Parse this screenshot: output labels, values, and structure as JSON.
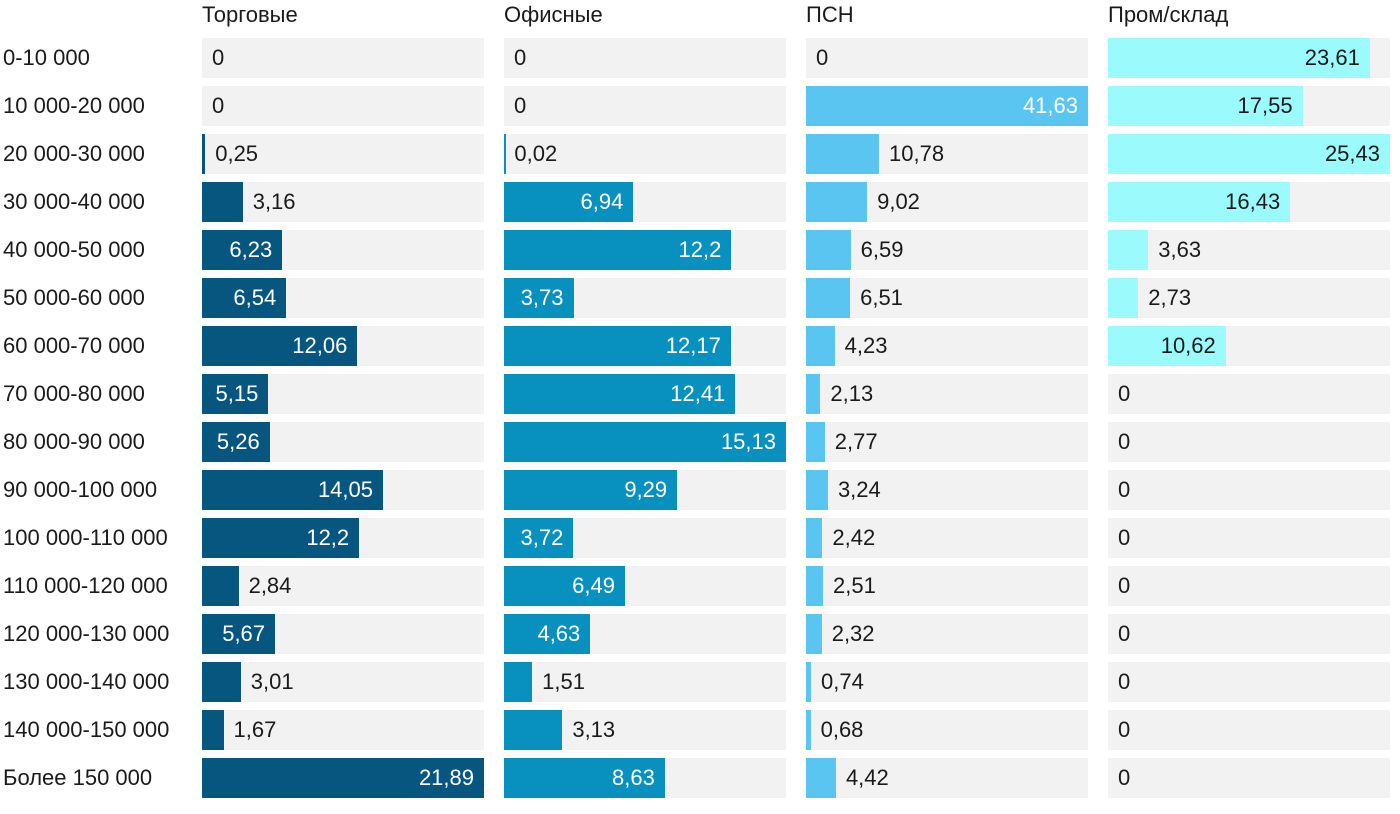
{
  "chart_data": {
    "type": "bar",
    "orientation": "horizontal",
    "layout": "small-multiples",
    "categories": [
      "0-10 000",
      "10 000-20 000",
      "20 000-30 000",
      "30 000-40 000",
      "40 000-50 000",
      "50 000-60 000",
      "60 000-70 000",
      "70 000-80 000",
      "80 000-90 000",
      "90 000-100 000",
      "100 000-110 000",
      "110 000-120 000",
      "120 000-130 000",
      "130 000-140 000",
      "140 000-150 000",
      "Более 150 000"
    ],
    "series": [
      {
        "name": "Торговые",
        "color": "#06567f",
        "values": [
          0,
          0,
          0.25,
          3.16,
          6.23,
          6.54,
          12.06,
          5.15,
          5.26,
          14.05,
          12.2,
          2.84,
          5.67,
          3.01,
          1.67,
          21.89
        ],
        "labels": [
          "0",
          "0",
          "0,25",
          "3,16",
          "6,23",
          "6,54",
          "12,06",
          "5,15",
          "5,26",
          "14,05",
          "12,2",
          "2,84",
          "5,67",
          "3,01",
          "1,67",
          "21,89"
        ]
      },
      {
        "name": "Офисные",
        "color": "#0891be",
        "values": [
          0,
          0,
          0.02,
          6.94,
          12.2,
          3.73,
          12.17,
          12.41,
          15.13,
          9.29,
          3.72,
          6.49,
          4.63,
          1.51,
          3.13,
          8.63
        ],
        "labels": [
          "0",
          "0",
          "0,02",
          "6,94",
          "12,2",
          "3,73",
          "12,17",
          "12,41",
          "15,13",
          "9,29",
          "3,72",
          "6,49",
          "4,63",
          "1,51",
          "3,13",
          "8,63"
        ]
      },
      {
        "name": "ПСН",
        "color": "#5bc5f2",
        "values": [
          0,
          41.63,
          10.78,
          9.02,
          6.59,
          6.51,
          4.23,
          2.13,
          2.77,
          3.24,
          2.42,
          2.51,
          2.32,
          0.74,
          0.68,
          4.42
        ],
        "labels": [
          "0",
          "41,63",
          "10,78",
          "9,02",
          "6,59",
          "6,51",
          "4,23",
          "2,13",
          "2,77",
          "3,24",
          "2,42",
          "2,51",
          "2,32",
          "0,74",
          "0,68",
          "4,42"
        ]
      },
      {
        "name": "Пром/склад",
        "color": "#9bfbfc",
        "values": [
          23.61,
          17.55,
          25.43,
          16.43,
          3.63,
          2.73,
          10.62,
          0,
          0,
          0,
          0,
          0,
          0,
          0,
          0,
          0
        ],
        "labels": [
          "23,61",
          "17,55",
          "25,43",
          "16,43",
          "3,63",
          "2,73",
          "10,62",
          "0",
          "0",
          "0",
          "0",
          "0",
          "0",
          "0",
          "0",
          "0"
        ]
      }
    ]
  },
  "colors": {
    "track": "#f2f2f2",
    "label_inside": "#ffffff",
    "label_outside": "#1a1a1a"
  }
}
